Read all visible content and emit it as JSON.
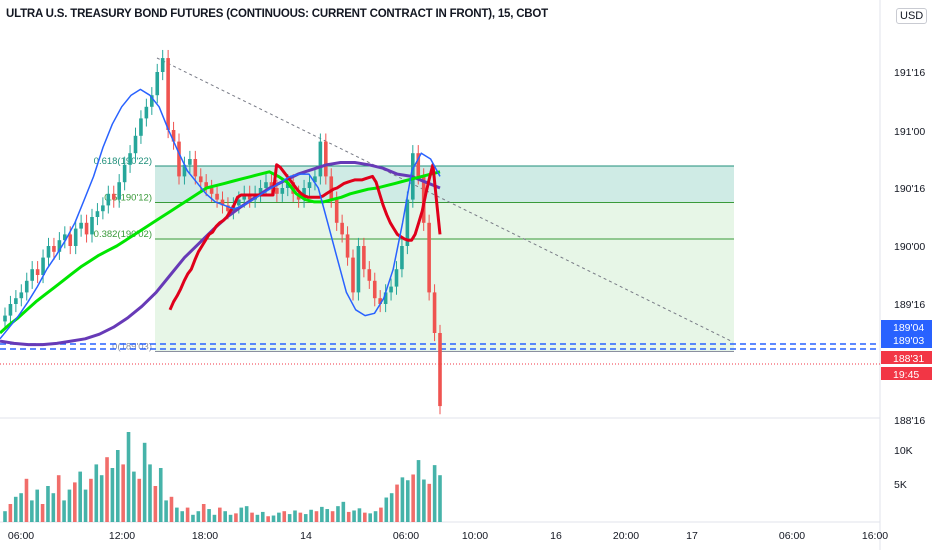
{
  "chart_data": {
    "type": "candlestick",
    "title": "ULTRA U.S. TREASURY BOND FUTURES (CONTINUOUS: CURRENT CONTRACT IN FRONT), 15, CBOT",
    "currency": "USD",
    "y_axis": {
      "ticks": [
        "191'16",
        "191'00",
        "190'16",
        "190'00",
        "189'16",
        "188'16"
      ],
      "range_ticks": [
        188.1,
        191.85
      ],
      "scale": "linear",
      "grid": false
    },
    "x_axis": {
      "ticks": [
        "06:00",
        "12:00",
        "18:00",
        "14",
        "06:00",
        "10:00",
        "16",
        "20:00",
        "17",
        "06:00",
        "16:00"
      ]
    },
    "volume_axis": {
      "ticks": [
        "10K",
        "5K"
      ]
    },
    "price_labels": [
      {
        "text": "189'04",
        "color": "#2962ff"
      },
      {
        "text": "189'03",
        "color": "#2962ff"
      },
      {
        "text": "188'31",
        "color": "#f23645"
      },
      {
        "text": "19:45",
        "color": "#f23645"
      }
    ],
    "fibonacci": [
      {
        "label": "0.618(190'22)",
        "price": 190.69
      },
      {
        "label": "0.5(190'12)",
        "price": 190.375
      },
      {
        "label": "0.382(190'02)",
        "price": 190.06
      },
      {
        "label": "0(189'03)",
        "price": 189.09
      }
    ],
    "series": [
      {
        "name": "close",
        "values": [
          189.4,
          189.5,
          189.55,
          189.6,
          189.7,
          189.8,
          189.75,
          189.9,
          190.0,
          189.95,
          190.05,
          190.1,
          190.0,
          190.15,
          190.2,
          190.1,
          190.25,
          190.3,
          190.35,
          190.45,
          190.4,
          190.55,
          190.7,
          190.8,
          190.95,
          191.1,
          191.2,
          191.3,
          191.5,
          191.62,
          191.0,
          190.9,
          190.6,
          190.7,
          190.75,
          190.6,
          190.55,
          190.5,
          190.45,
          190.4,
          190.35,
          190.3,
          190.35,
          190.4,
          190.45,
          190.4,
          190.45,
          190.5,
          190.55,
          190.5,
          190.45,
          190.5,
          190.55,
          190.45,
          190.4,
          190.5,
          190.55,
          190.6,
          190.9,
          190.6,
          190.4,
          190.2,
          190.1,
          189.9,
          189.6,
          190.0,
          189.8,
          189.7,
          189.55,
          189.5,
          189.6,
          189.65,
          189.8,
          190.0,
          190.4,
          190.8,
          190.6,
          190.2,
          189.6,
          189.25,
          188.62
        ]
      },
      {
        "name": "Moving average (red)",
        "values": [
          189.45,
          189.52,
          189.57,
          189.63,
          189.7,
          189.76,
          189.8,
          189.88,
          189.95,
          190.0,
          190.05,
          190.1,
          190.12,
          190.17,
          190.2,
          190.22,
          190.25,
          190.3,
          190.35,
          190.42,
          190.44,
          190.44,
          190.44,
          190.44,
          190.44,
          190.44,
          190.44,
          190.44,
          190.44,
          190.44,
          190.7,
          190.68,
          190.64,
          190.6,
          190.56,
          190.52,
          190.48,
          190.45,
          190.43,
          190.42,
          190.42,
          190.42,
          190.42,
          190.43,
          190.45,
          190.47,
          190.49,
          190.5,
          190.52,
          190.54,
          190.55,
          190.56,
          190.57,
          190.57,
          190.57,
          190.58,
          190.59,
          190.6,
          190.55,
          190.45,
          190.35,
          190.27,
          190.2,
          190.15,
          190.1,
          190.08,
          190.06,
          190.05,
          190.05,
          190.1,
          190.2,
          190.3,
          190.45,
          190.58,
          190.7,
          190.4,
          190.1
        ]
      },
      {
        "name": "Moving average (green)",
        "values": [
          189.25,
          189.32,
          189.38,
          189.45,
          189.52,
          189.58,
          189.64,
          189.7,
          189.76,
          189.82,
          189.87,
          189.92,
          189.96,
          190.0,
          190.05,
          190.1,
          190.15,
          190.2,
          190.25,
          190.3,
          190.35,
          190.4,
          190.45,
          190.5,
          190.52,
          190.54,
          190.56,
          190.58,
          190.6,
          190.62,
          190.64,
          190.6,
          190.55,
          190.45,
          190.4,
          190.38,
          190.38,
          190.4,
          190.42,
          190.45,
          190.47,
          190.49,
          190.5,
          190.52,
          190.54,
          190.56,
          190.58,
          190.6,
          190.62,
          190.64
        ]
      },
      {
        "name": "Moving average (blue)",
        "values": [
          189.2,
          189.3,
          189.4,
          189.52,
          189.65,
          189.8,
          189.92,
          190.05,
          190.2,
          190.4,
          190.6,
          190.85,
          191.05,
          191.2,
          191.3,
          191.35,
          191.3,
          191.2,
          191.0,
          190.82,
          190.65,
          190.55,
          190.45,
          190.38,
          190.35,
          190.32,
          190.35,
          190.4,
          190.45,
          190.5,
          190.55,
          190.6,
          190.62,
          190.62,
          190.5,
          190.2,
          189.9,
          189.6,
          189.45,
          189.4,
          189.42,
          189.55,
          189.8,
          190.2,
          190.65,
          190.8,
          190.75,
          190.6
        ]
      },
      {
        "name": "Moving average (purple)",
        "values": [
          189.18,
          189.16,
          189.15,
          189.15,
          189.16,
          189.18,
          189.2,
          189.24,
          189.3,
          189.38,
          189.48,
          189.6,
          189.75,
          189.9,
          190.02,
          190.14,
          190.25,
          190.34,
          190.42,
          190.5,
          190.56,
          190.62,
          190.66,
          190.7,
          190.72,
          190.72,
          190.7,
          190.67,
          190.62,
          190.6,
          190.55,
          190.5
        ]
      },
      {
        "name": "Volume",
        "values": [
          1.5,
          2.5,
          3.5,
          4,
          6,
          3,
          4.5,
          2.5,
          5,
          4,
          6.5,
          3,
          4.5,
          5.5,
          7,
          4.5,
          6,
          8,
          6.5,
          9,
          7.5,
          10,
          8,
          12.5,
          7,
          6,
          11,
          8,
          5,
          7.5,
          3,
          3.5,
          2,
          1.5,
          2,
          1,
          1.5,
          2.5,
          1.8,
          1,
          2,
          1.5,
          1,
          1.2,
          2,
          2.2,
          1.3,
          1,
          1.4,
          0.8,
          0.9,
          1.3,
          1.5,
          1.1,
          1.6,
          1.3,
          1.1,
          1.7,
          1.5,
          2.1,
          1.8,
          1.5,
          2.2,
          2.8,
          1.4,
          1.6,
          1.9,
          1.3,
          1.2,
          1.5,
          2,
          3.4,
          4,
          5.2,
          6.2,
          5.8,
          6.6,
          8.6,
          5.9,
          5.3,
          7.9,
          6.5
        ]
      }
    ]
  }
}
